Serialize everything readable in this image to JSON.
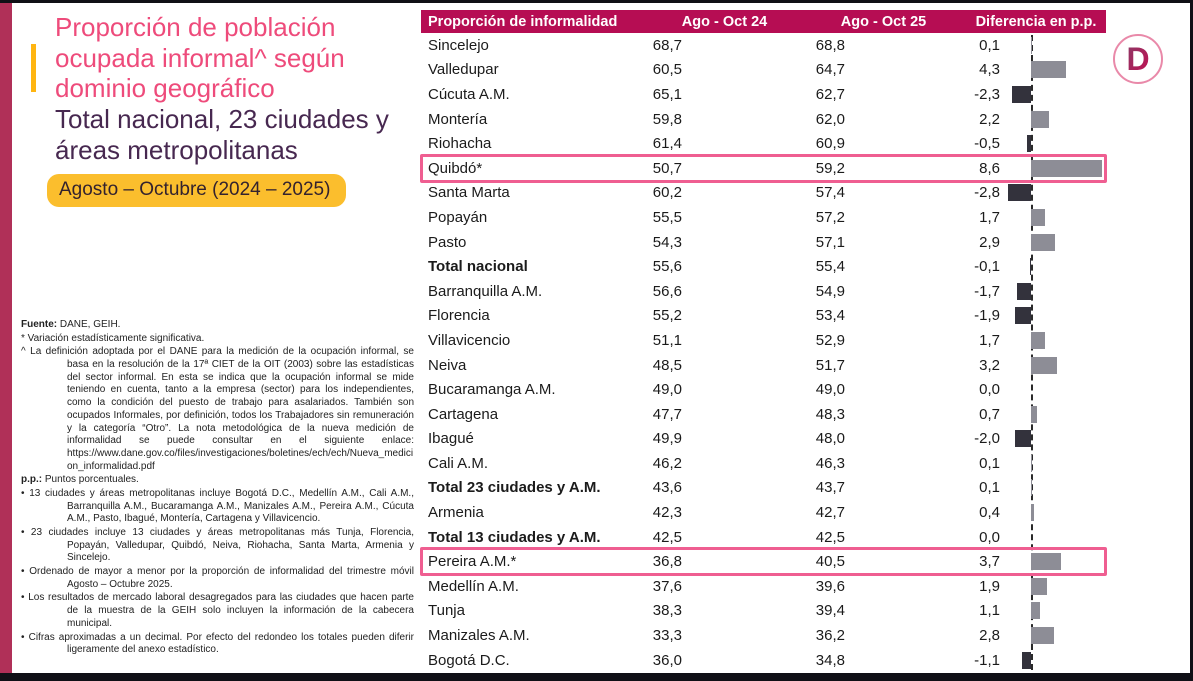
{
  "page": {
    "title": "Proporción de población ocupada informal^ según dominio geográfico",
    "subtitle": "Total nacional, 23 ciudades y áreas metropolitanas",
    "badge": "Agosto – Octubre (2024 – 2025)",
    "logo_letter": "D"
  },
  "table_header": {
    "label": "Proporción de informalidad",
    "period1": "Ago - Oct 24",
    "period2": "Ago - Oct 25",
    "diff": "Diferencia en p.p."
  },
  "chart_data": {
    "type": "bar",
    "orientation": "horizontal",
    "title": "Proporción de población ocupada informal según dominio geográfico — Total nacional, 23 ciudades y áreas metropolitanas, Agosto – Octubre (2024 – 2025)",
    "categories": [
      "Sincelejo",
      "Valledupar",
      "Cúcuta A.M.",
      "Montería",
      "Riohacha",
      "Quibdó*",
      "Santa Marta",
      "Popayán",
      "Pasto",
      "Total nacional",
      "Barranquilla A.M.",
      "Florencia",
      "Villavicencio",
      "Neiva",
      "Bucaramanga A.M.",
      "Cartagena",
      "Ibagué",
      "Cali A.M.",
      "Total 23 ciudades y A.M.",
      "Armenia",
      "Total 13 ciudades y A.M.",
      "Pereira A.M.*",
      "Medellín A.M.",
      "Tunja",
      "Manizales A.M.",
      "Bogotá D.C."
    ],
    "series": [
      {
        "name": "Ago - Oct 24",
        "values": [
          68.7,
          60.5,
          65.1,
          59.8,
          61.4,
          50.7,
          60.2,
          55.5,
          54.3,
          55.6,
          56.6,
          55.2,
          51.1,
          48.5,
          49.0,
          47.7,
          49.9,
          46.2,
          43.6,
          42.3,
          42.5,
          36.8,
          37.6,
          38.3,
          33.3,
          36.0
        ]
      },
      {
        "name": "Ago - Oct 25",
        "values": [
          68.8,
          64.7,
          62.7,
          62.0,
          60.9,
          59.2,
          57.4,
          57.2,
          57.1,
          55.4,
          54.9,
          53.4,
          52.9,
          51.7,
          49.0,
          48.3,
          48.0,
          46.3,
          43.7,
          42.7,
          42.5,
          40.5,
          39.6,
          39.4,
          36.2,
          34.8
        ]
      },
      {
        "name": "Diferencia en p.p.",
        "values": [
          0.1,
          4.3,
          -2.3,
          2.2,
          -0.5,
          8.6,
          -2.8,
          1.7,
          2.9,
          -0.1,
          -1.7,
          -1.9,
          1.7,
          3.2,
          0.0,
          0.7,
          -2.0,
          0.1,
          0.1,
          0.4,
          0.0,
          3.7,
          1.9,
          1.1,
          2.8,
          -1.1
        ]
      }
    ],
    "bold_categories": [
      "Total nacional",
      "Total 23 ciudades y A.M.",
      "Total 13 ciudades y A.M."
    ],
    "highlighted_categories": [
      "Quibdó*",
      "Pereira A.M.*"
    ],
    "decimal_separator": ",",
    "colors": {
      "period1_bar": "#D99BB8",
      "period2_bar": "#BA0854",
      "diff_positive": "#8D8D96",
      "diff_negative": "#33323C",
      "header_band": "#B60D53",
      "highlight_border": "#EF5E91",
      "title_pink": "#EE4B7B",
      "badge_yellow": "#FBBE2D"
    }
  },
  "footnotes": {
    "source_label": "Fuente:",
    "source_text": " DANE, GEIH.",
    "notes": [
      {
        "marker": "*",
        "bold": false,
        "text": "Variación estadísticamente significativa."
      },
      {
        "marker": "^",
        "bold": false,
        "text": "La definición adoptada por el DANE para la medición de la ocupación informal, se basa en la resolución de la 17ª CIET de la OIT (2003) sobre las estadísticas del sector informal. En esta se indica que la ocupación informal se mide teniendo en cuenta, tanto a la empresa (sector) para los independientes, como la condición del puesto de trabajo para asalariados. También son ocupados Informales, por definición, todos los Trabajadores sin remuneración y la categoría “Otro”. La nota metodológica de la nueva medición de informalidad se puede consultar en el siguiente enlace: https://www.dane.gov.co/files/investigaciones/boletines/ech/ech/Nueva_medicion_informalidad.pdf"
      },
      {
        "marker": "p.p.:",
        "bold": true,
        "text": "Puntos porcentuales."
      },
      {
        "marker": "•",
        "bold": false,
        "text": "13 ciudades y áreas metropolitanas incluye Bogotá D.C., Medellín A.M., Cali A.M., Barranquilla A.M., Bucaramanga A.M., Manizales A.M., Pereira A.M., Cúcuta A.M., Pasto, Ibagué, Montería, Cartagena y Villavicencio."
      },
      {
        "marker": "•",
        "bold": false,
        "text": "23 ciudades incluye 13 ciudades y áreas metropolitanas más Tunja, Florencia, Popayán, Valledupar, Quibdó, Neiva, Riohacha, Santa Marta, Armenia y Sincelejo."
      },
      {
        "marker": "•",
        "bold": false,
        "text": "Ordenado de mayor a menor por la proporción de informalidad del trimestre móvil Agosto – Octubre 2025."
      },
      {
        "marker": "•",
        "bold": false,
        "text": "Los resultados de mercado laboral desagregados para las ciudades que hacen parte de la muestra de la GEIH solo incluyen la información de la cabecera municipal."
      },
      {
        "marker": "•",
        "bold": false,
        "text": "Cifras aproximadas a un decimal. Por efecto del redondeo los totales pueden diferir ligeramente del anexo estadístico."
      }
    ]
  }
}
